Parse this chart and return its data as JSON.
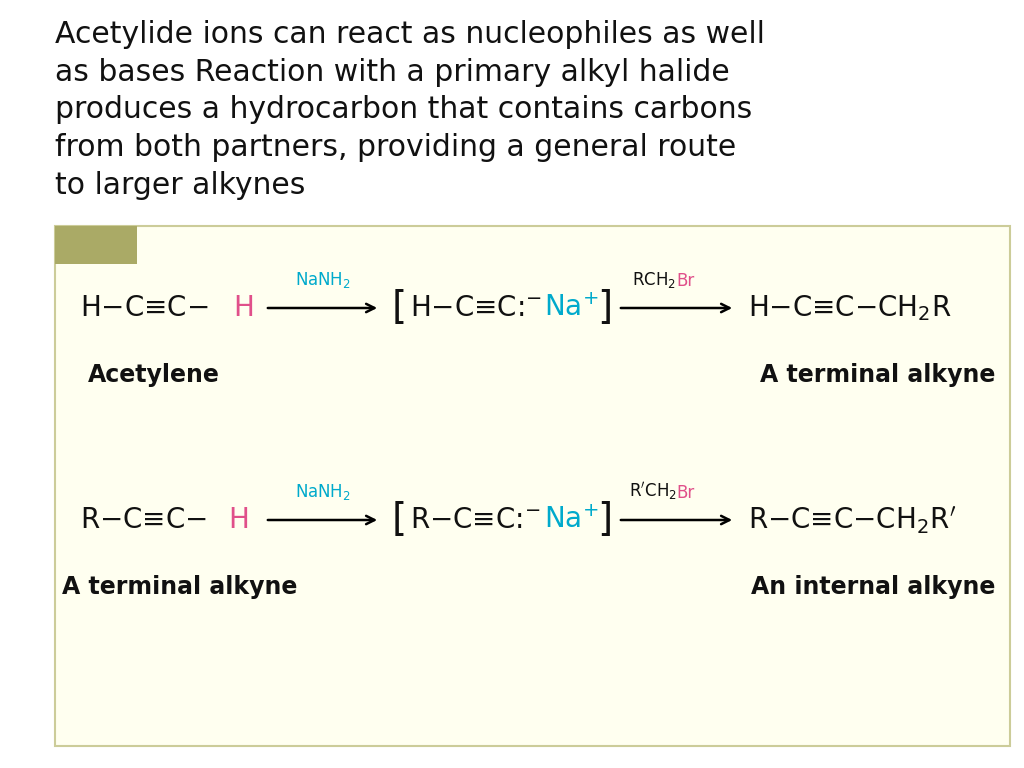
{
  "title_text": "Acetylide ions can react as nucleophiles as well\nas bases Reaction with a primary alkyl halide\nproduces a hydrocarbon that contains carbons\nfrom both partners, providing a general route\nto larger alkynes",
  "title_fontsize": 21.5,
  "title_color": "#111111",
  "bg_color": "#ffffff",
  "reaction_box_color": "#fffff0",
  "reaction_box_border": "#cccc99",
  "olive_rect_color": "#aaaa66",
  "text_color_black": "#111111",
  "text_color_pink": "#e0508a",
  "text_color_cyan": "#00aacc",
  "chem_fontsize": 20,
  "label_fontsize": 17,
  "arrow_label_fontsize": 12,
  "reaction1_label_left": "Acetylene",
  "reaction1_label_right": "A terminal alkyne",
  "reaction2_label_left": "A terminal alkyne",
  "reaction2_label_right": "An internal alkyne"
}
